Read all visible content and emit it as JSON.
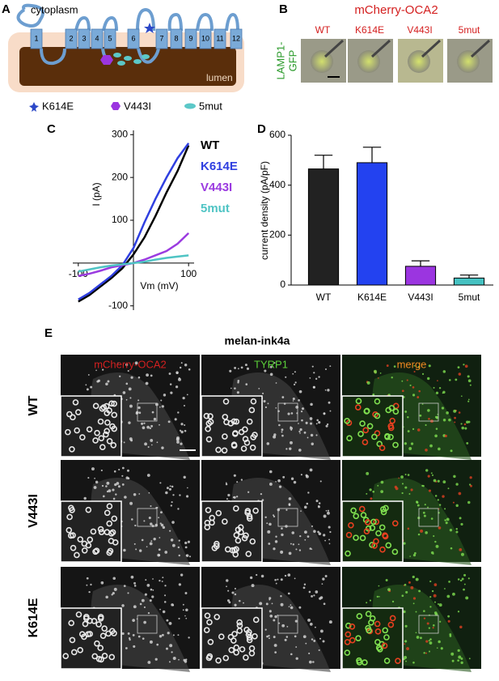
{
  "panel_labels": [
    "A",
    "B",
    "C",
    "D",
    "E"
  ],
  "diagram_a": {
    "cytoplasm": "cytoplasm",
    "lumen": "lumen",
    "helices": [
      "1",
      "2",
      "3",
      "4",
      "5",
      "6",
      "7",
      "8",
      "9",
      "10",
      "11",
      "12"
    ],
    "legend": [
      "K614E",
      "V443I",
      "5mut"
    ]
  },
  "images_b": {
    "title": "mCherry-OCA2",
    "row_label": [
      "LAMP1-",
      "GFP"
    ],
    "columns": [
      "WT",
      "K614E",
      "V443I",
      "5mut"
    ]
  },
  "chart_data": [
    {
      "type": "line",
      "xlabel": "Vm (mV)",
      "ylabel": "I (pA)",
      "x": [
        -100,
        -80,
        -60,
        -40,
        -20,
        0,
        20,
        40,
        60,
        80,
        100
      ],
      "series": [
        {
          "name": "WT",
          "color": "#000000",
          "values": [
            -90,
            -75,
            -55,
            -35,
            -12,
            20,
            60,
            110,
            165,
            215,
            275
          ]
        },
        {
          "name": "K614E",
          "color": "#2f3fe0",
          "values": [
            -85,
            -70,
            -50,
            -30,
            -5,
            35,
            95,
            150,
            200,
            245,
            280
          ]
        },
        {
          "name": "V443I",
          "color": "#9b3be0",
          "values": [
            -30,
            -25,
            -18,
            -10,
            -5,
            0,
            8,
            18,
            28,
            45,
            70
          ]
        },
        {
          "name": "5mut",
          "color": "#4fc4c4",
          "values": [
            -20,
            -15,
            -10,
            -6,
            -3,
            0,
            3,
            8,
            12,
            15,
            18
          ]
        }
      ],
      "xlim": [
        -110,
        110
      ],
      "xticks": [
        -100,
        100
      ],
      "ylim": [
        -110,
        310
      ],
      "yticks": [
        -100,
        100,
        200,
        300
      ]
    },
    {
      "type": "bar",
      "ylabel": "current density (pA/pF)",
      "categories": [
        "WT",
        "K614E",
        "V443I",
        "5mut"
      ],
      "values": [
        465,
        490,
        75,
        28
      ],
      "errors": [
        55,
        62,
        22,
        12
      ],
      "colors": [
        "#222222",
        "#2342f0",
        "#9b35e0",
        "#45c2c2"
      ],
      "ylim": [
        0,
        600
      ],
      "yticks": [
        0,
        200,
        400,
        600
      ]
    }
  ],
  "images_e": {
    "title": "melan-ink4a",
    "columns": [
      "mCherry-OCA2",
      "TYRP1",
      "merge"
    ],
    "rows": [
      "WT",
      "V443I",
      "K614E"
    ]
  }
}
